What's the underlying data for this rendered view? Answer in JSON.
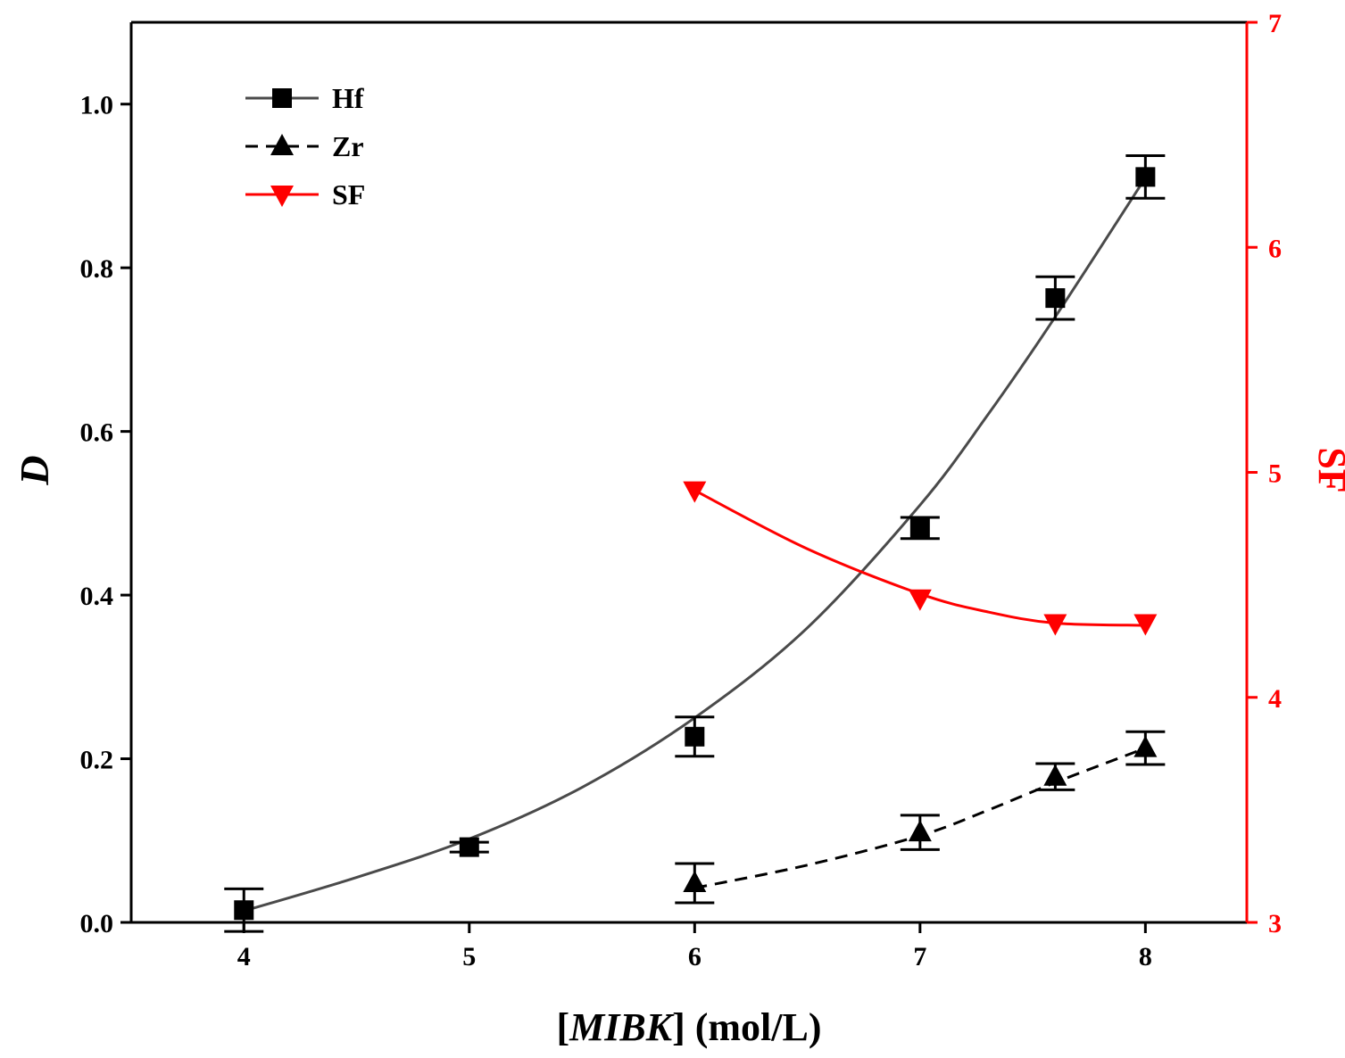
{
  "chart_data": {
    "type": "line",
    "xlabel": {
      "open": "[",
      "var": "MIBK",
      "close": "] (mol/L)"
    },
    "ylabel_left": "D",
    "ylabel_right": "SF",
    "xlim": [
      3.5,
      8.45
    ],
    "ylim_left": [
      0,
      1.1
    ],
    "ylim_right": [
      3,
      7
    ],
    "x_ticks": [
      4,
      5,
      6,
      7,
      8
    ],
    "x_tick_labels": [
      "4",
      "5",
      "6",
      "7",
      "8"
    ],
    "y_left_ticks": [
      0.0,
      0.2,
      0.4,
      0.6,
      0.8,
      1.0
    ],
    "y_left_tick_labels": [
      "0.0",
      "0.2",
      "0.4",
      "0.6",
      "0.8",
      "1.0"
    ],
    "y_right_ticks": [
      3,
      4,
      5,
      6,
      7
    ],
    "y_right_tick_labels": [
      "3",
      "4",
      "5",
      "6",
      "7"
    ],
    "series": [
      {
        "name": "Hf",
        "axis": "left",
        "marker": "square",
        "line": "solid",
        "color": "#4a4a4a",
        "marker_color": "#000000",
        "x": [
          4,
          5,
          6,
          7,
          7.6,
          8
        ],
        "y": [
          0.015,
          0.092,
          0.227,
          0.482,
          0.763,
          0.911
        ],
        "err": [
          0.026,
          0.006,
          0.024,
          0.013,
          0.026,
          0.026
        ],
        "fit_x": [
          4,
          4.5,
          5,
          5.5,
          6,
          6.5,
          7,
          7.3,
          7.6,
          8
        ],
        "fit_y": [
          0.014,
          0.055,
          0.102,
          0.165,
          0.25,
          0.36,
          0.51,
          0.62,
          0.74,
          0.91
        ]
      },
      {
        "name": "Zr",
        "axis": "left",
        "marker": "triangle-up",
        "line": "dashed",
        "color": "#000000",
        "marker_color": "#000000",
        "x": [
          6,
          7,
          7.6,
          8
        ],
        "y": [
          0.048,
          0.11,
          0.178,
          0.213
        ],
        "err": [
          0.024,
          0.021,
          0.016,
          0.02
        ],
        "fit_x": [
          6,
          6.5,
          7,
          7.3,
          7.6,
          8
        ],
        "fit_y": [
          0.042,
          0.07,
          0.106,
          0.137,
          0.171,
          0.213
        ]
      },
      {
        "name": "SF",
        "axis": "right",
        "marker": "triangle-down",
        "line": "solid",
        "color": "#ff0000",
        "marker_color": "#ff0000",
        "x": [
          6,
          7,
          7.6,
          8
        ],
        "y": [
          4.92,
          4.44,
          4.33,
          4.33
        ],
        "fit_x": [
          6,
          6.5,
          7,
          7.3,
          7.6,
          8
        ],
        "fit_y": [
          4.92,
          4.66,
          4.46,
          4.38,
          4.33,
          4.32
        ]
      }
    ],
    "legend": {
      "position": "top-left",
      "entries": [
        "Hf",
        "Zr",
        "SF"
      ]
    }
  }
}
